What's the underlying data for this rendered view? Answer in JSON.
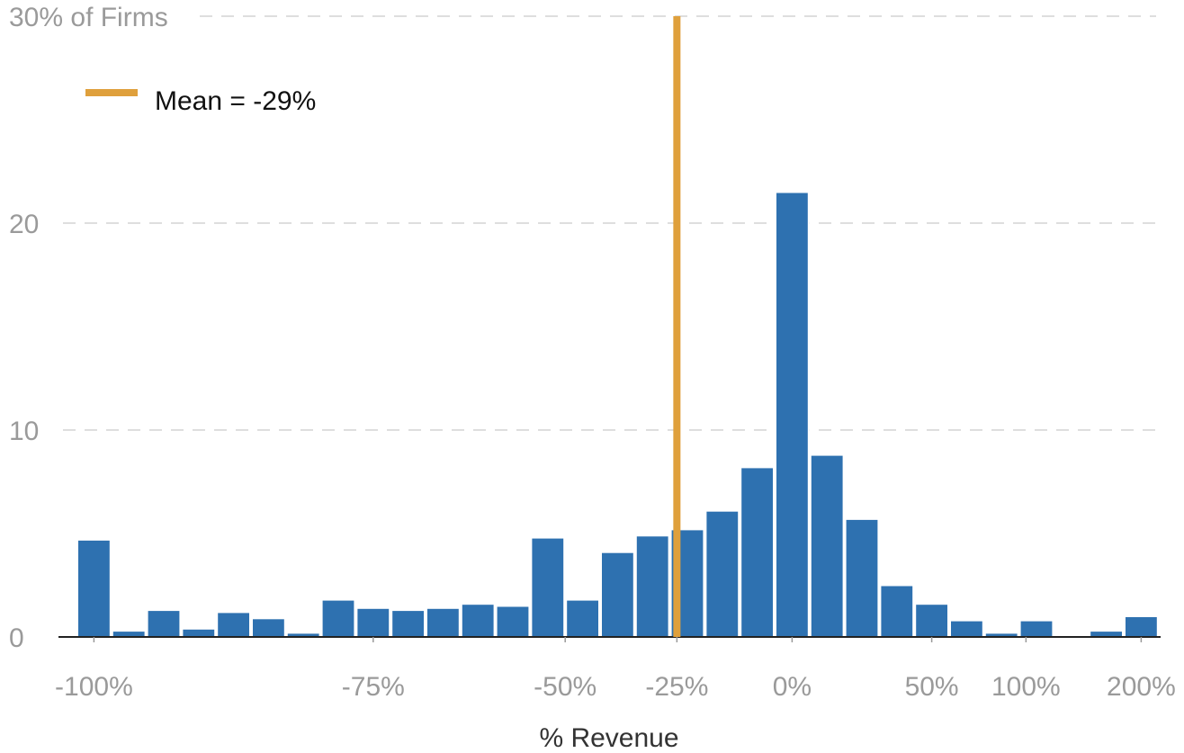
{
  "chart_data": {
    "type": "bar",
    "xlabel": "% Revenue",
    "ylabel": "30% of Firms",
    "ylim": [
      0,
      30
    ],
    "yticks": [
      {
        "value": 30,
        "label": "30% of Firms"
      },
      {
        "value": 20,
        "label": "20"
      },
      {
        "value": 10,
        "label": "10"
      },
      {
        "value": 0,
        "label": "0"
      }
    ],
    "xticks": [
      {
        "pos": 0,
        "label": "-100%"
      },
      {
        "pos": 8,
        "label": "-75%"
      },
      {
        "pos": 13.5,
        "label": "-50%"
      },
      {
        "pos": 16.7,
        "label": "-25%"
      },
      {
        "pos": 20,
        "label": "0%"
      },
      {
        "pos": 24,
        "label": "50%"
      },
      {
        "pos": 26.7,
        "label": "100%"
      },
      {
        "pos": 30,
        "label": "200%"
      }
    ],
    "bins": 31,
    "values": [
      4.7,
      0.3,
      1.3,
      0.4,
      1.2,
      0.9,
      0.2,
      1.8,
      1.4,
      1.3,
      1.4,
      1.6,
      1.5,
      4.8,
      1.8,
      4.1,
      4.9,
      5.2,
      6.1,
      8.2,
      21.5,
      8.8,
      5.7,
      2.5,
      1.6,
      0.8,
      0.2,
      0.8,
      0.0,
      0.3,
      1.0
    ],
    "bar_color": "#2e71b0",
    "mean": {
      "pos": 16.7,
      "label": "Mean = -29%",
      "color": "#dfa03c"
    },
    "grid": true,
    "legend_position": "top-left"
  }
}
